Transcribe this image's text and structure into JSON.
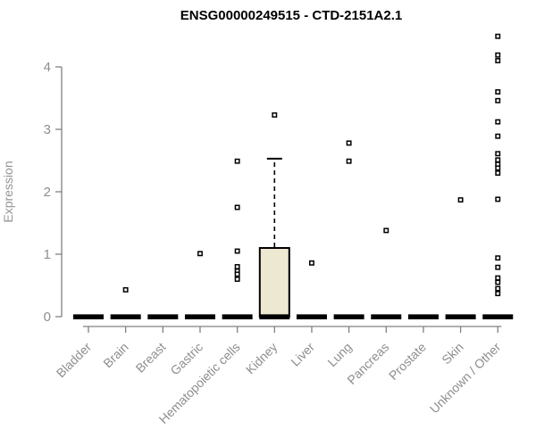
{
  "chart_data": {
    "type": "box",
    "title": "ENSG00000249515 - CTD-2151A2.1",
    "ylabel": "Expression",
    "xlabel": "",
    "ylim": [
      0,
      4.6
    ],
    "yticks": [
      0,
      1,
      2,
      3,
      4
    ],
    "grid": false,
    "legend": false,
    "categories": [
      "Bladder",
      "Brain",
      "Breast",
      "Gastric",
      "Hematopoietic cells",
      "Kidney",
      "Liver",
      "Lung",
      "Pancreas",
      "Prostate",
      "Skin",
      "Unknown / Other"
    ],
    "series": [
      {
        "category": "Bladder",
        "median": 0,
        "outliers": []
      },
      {
        "category": "Brain",
        "median": 0,
        "outliers": [
          0.43
        ]
      },
      {
        "category": "Breast",
        "median": 0,
        "outliers": []
      },
      {
        "category": "Gastric",
        "median": 0,
        "outliers": [
          1.01
        ]
      },
      {
        "category": "Hematopoietic cells",
        "median": 0,
        "outliers": [
          2.49,
          1.75,
          1.05,
          0.8,
          0.73,
          0.68,
          0.6
        ]
      },
      {
        "category": "Kidney",
        "median": 0,
        "box": {
          "q1": 0,
          "q3": 1.1,
          "whisker_high": 2.53
        },
        "outliers": [
          3.23
        ]
      },
      {
        "category": "Liver",
        "median": 0,
        "outliers": [
          0.86
        ]
      },
      {
        "category": "Lung",
        "median": 0,
        "outliers": [
          2.78,
          2.49
        ]
      },
      {
        "category": "Pancreas",
        "median": 0,
        "outliers": [
          1.38
        ]
      },
      {
        "category": "Prostate",
        "median": 0,
        "outliers": []
      },
      {
        "category": "Skin",
        "median": 0,
        "outliers": [
          1.87
        ]
      },
      {
        "category": "Unknown / Other",
        "median": 0,
        "outliers": [
          4.49,
          4.19,
          4.1,
          3.6,
          3.46,
          3.12,
          2.89,
          2.61,
          2.51,
          2.44,
          2.38,
          2.3,
          1.88,
          0.94,
          0.79,
          0.62,
          0.55,
          0.45,
          0.37
        ]
      }
    ],
    "colors": {
      "box_fill": "#EDE8D1",
      "box_stroke": "#000000",
      "median_bar": "#000000",
      "outlier_stroke": "#000000",
      "outlier_fill": "#ffffff",
      "axis": "#818181",
      "tick_label": "#8e8e8e",
      "title": "#000000",
      "background": "#ffffff"
    }
  }
}
